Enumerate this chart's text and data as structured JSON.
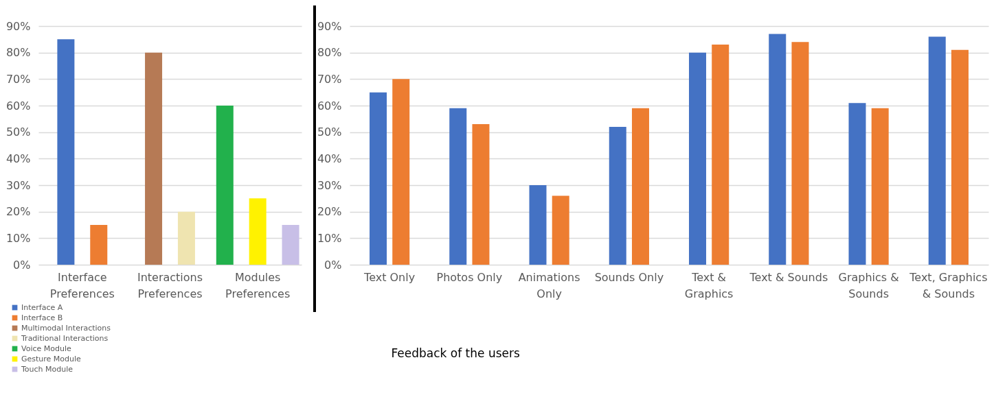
{
  "chart_data": [
    {
      "type": "bar",
      "categories": [
        "Interface Preferences",
        "Interactions Preferences",
        "Modules Preferences"
      ],
      "series": [
        {
          "name": "Interface A",
          "color": "#4472c4",
          "values": [
            85,
            null,
            null
          ]
        },
        {
          "name": "Interface B",
          "color": "#ed7d31",
          "values": [
            15,
            null,
            null
          ]
        },
        {
          "name": "Multimodal Interactions",
          "color": "#b67a55",
          "values": [
            null,
            80,
            null
          ]
        },
        {
          "name": "Traditional Interactions",
          "color": "#efe4b0",
          "values": [
            null,
            20,
            null
          ]
        },
        {
          "name": "Voice Module",
          "color": "#22b14c",
          "values": [
            null,
            null,
            60
          ]
        },
        {
          "name": "Gesture Module",
          "color": "#fff200",
          "values": [
            null,
            null,
            25
          ]
        },
        {
          "name": "Touch Module",
          "color": "#c8bfe7",
          "values": [
            null,
            null,
            15
          ]
        }
      ],
      "ylim": [
        0,
        90
      ],
      "yticks": [
        {
          "value": 0,
          "label": "0%"
        },
        {
          "value": 10,
          "label": "10%"
        },
        {
          "value": 20,
          "label": "20%"
        },
        {
          "value": 30,
          "label": "30%"
        },
        {
          "value": 40,
          "label": "40%"
        },
        {
          "value": 50,
          "label": "50%"
        },
        {
          "value": 60,
          "label": "60%"
        },
        {
          "value": 70,
          "label": "70%"
        },
        {
          "value": 80,
          "label": "80%"
        },
        {
          "value": 90,
          "label": "90%"
        }
      ],
      "grid": "y",
      "legend": "bottom left"
    },
    {
      "type": "bar",
      "categories": [
        "Text Only",
        "Photos Only",
        "Animations Only",
        "Sounds Only",
        "Text & Graphics",
        "Text & Sounds",
        "Graphics & Sounds",
        "Text, Graphics & Sounds"
      ],
      "series": [
        {
          "color": "#4472c4",
          "values": [
            65,
            59,
            30,
            52,
            80,
            87,
            61,
            86
          ]
        },
        {
          "color": "#ed7d31",
          "values": [
            70,
            53,
            26,
            59,
            83,
            84,
            59,
            81
          ]
        }
      ],
      "ylim": [
        0,
        90
      ],
      "yticks": [
        {
          "value": 0,
          "label": "0%"
        },
        {
          "value": 10,
          "label": "10%"
        },
        {
          "value": 20,
          "label": "20%"
        },
        {
          "value": 30,
          "label": "30%"
        },
        {
          "value": 40,
          "label": "40%"
        },
        {
          "value": 50,
          "label": "50%"
        },
        {
          "value": 60,
          "label": "60%"
        },
        {
          "value": 70,
          "label": "70%"
        },
        {
          "value": 80,
          "label": "80%"
        },
        {
          "value": 90,
          "label": "90%"
        }
      ],
      "grid": "y",
      "annotations": [
        "Feedback of the users"
      ]
    }
  ]
}
